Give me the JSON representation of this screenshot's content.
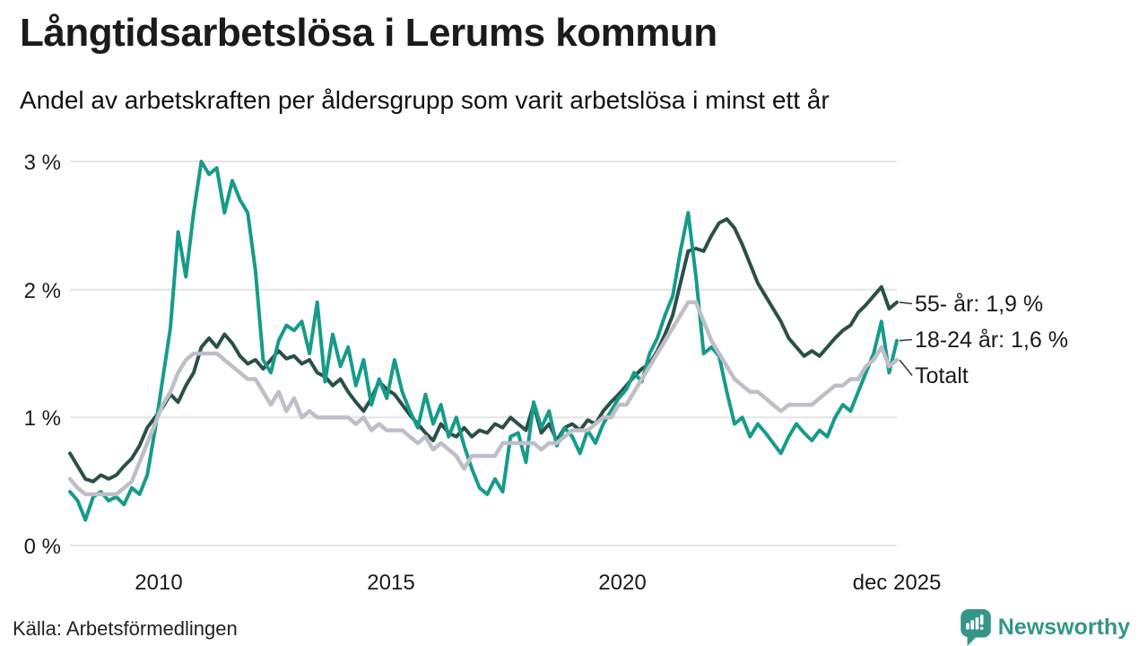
{
  "header": {
    "title": "Långtidsarbetslösa i Lerums kommun",
    "subtitle": "Andel av arbetskraften per åldersgrupp som varit arbetslösa i minst ett år"
  },
  "footer": {
    "source": "Källa: Arbetsförmedlingen",
    "brand_name": "Newsworthy"
  },
  "colors": {
    "series_55": "#2a5048",
    "series_18_24": "#169b8a",
    "series_total": "#bfbec8",
    "grid": "#e4e4e4",
    "connector": "#3a3a3a",
    "brand_teal": "#349688"
  },
  "chart_data": {
    "type": "line",
    "title": "Långtidsarbetslösa i Lerums kommun",
    "subtitle": "Andel av arbetskraften per åldersgrupp som varit arbetslösa i minst ett år",
    "unit": "%",
    "x_start": 2008.083,
    "x_end": 2025.917,
    "points_per_year": 6,
    "ylim": [
      0,
      3.2
    ],
    "grid": true,
    "legend_position": "right-end-labels",
    "y_ticks": [
      {
        "label": "0 %",
        "value": 0
      },
      {
        "label": "1 %",
        "value": 1
      },
      {
        "label": "2 %",
        "value": 2
      },
      {
        "label": "3 %",
        "value": 3
      }
    ],
    "x_ticks": [
      {
        "label": "2010",
        "x": 2010
      },
      {
        "label": "2015",
        "x": 2015
      },
      {
        "label": "2020",
        "x": 2020
      },
      {
        "label": "dec 2025",
        "x": 2025.917
      }
    ],
    "series": [
      {
        "name": "55- år",
        "end_label": "55- år: 1,9 %",
        "last_value_label": "1,9 %",
        "color": "#2a5048",
        "values": [
          0.72,
          0.62,
          0.52,
          0.5,
          0.55,
          0.52,
          0.55,
          0.62,
          0.68,
          0.78,
          0.92,
          1.0,
          1.08,
          1.18,
          1.12,
          1.25,
          1.35,
          1.55,
          1.62,
          1.55,
          1.65,
          1.58,
          1.48,
          1.42,
          1.45,
          1.38,
          1.45,
          1.52,
          1.46,
          1.48,
          1.42,
          1.45,
          1.35,
          1.32,
          1.25,
          1.3,
          1.2,
          1.12,
          1.05,
          1.15,
          1.28,
          1.22,
          1.18,
          1.1,
          1.02,
          0.95,
          0.88,
          0.82,
          0.95,
          0.88,
          0.85,
          0.92,
          0.85,
          0.9,
          0.88,
          0.95,
          0.92,
          1.0,
          0.95,
          0.9,
          1.1,
          0.88,
          0.95,
          0.82,
          0.92,
          0.95,
          0.9,
          0.98,
          0.95,
          1.05,
          1.12,
          1.18,
          1.25,
          1.32,
          1.38,
          1.42,
          1.52,
          1.65,
          1.8,
          2.05,
          2.3,
          2.32,
          2.3,
          2.42,
          2.52,
          2.55,
          2.48,
          2.35,
          2.2,
          2.05,
          1.95,
          1.85,
          1.75,
          1.62,
          1.55,
          1.48,
          1.52,
          1.48,
          1.55,
          1.62,
          1.68,
          1.72,
          1.82,
          1.88,
          1.95,
          2.02,
          1.85,
          1.9
        ]
      },
      {
        "name": "18-24 år",
        "end_label": "18-24 år: 1,6 %",
        "last_value_label": "1,6 %",
        "color": "#169b8a",
        "values": [
          0.42,
          0.35,
          0.2,
          0.38,
          0.42,
          0.35,
          0.38,
          0.32,
          0.45,
          0.4,
          0.55,
          0.9,
          1.3,
          1.7,
          2.45,
          2.1,
          2.6,
          3.0,
          2.9,
          2.95,
          2.6,
          2.85,
          2.7,
          2.6,
          2.15,
          1.45,
          1.35,
          1.6,
          1.72,
          1.68,
          1.75,
          1.5,
          1.9,
          1.28,
          1.65,
          1.4,
          1.55,
          1.25,
          1.45,
          1.1,
          1.3,
          1.15,
          1.45,
          1.2,
          1.05,
          0.92,
          1.18,
          0.95,
          1.1,
          0.85,
          1.0,
          0.78,
          0.6,
          0.45,
          0.4,
          0.52,
          0.42,
          0.85,
          0.88,
          0.65,
          1.12,
          0.92,
          1.05,
          0.78,
          0.92,
          0.85,
          0.72,
          0.9,
          0.8,
          0.95,
          1.05,
          1.15,
          1.22,
          1.35,
          1.28,
          1.5,
          1.62,
          1.8,
          1.95,
          2.3,
          2.6,
          2.1,
          1.5,
          1.55,
          1.48,
          1.2,
          0.95,
          1.0,
          0.85,
          0.95,
          0.88,
          0.8,
          0.72,
          0.85,
          0.95,
          0.88,
          0.82,
          0.9,
          0.85,
          1.0,
          1.1,
          1.05,
          1.2,
          1.35,
          1.5,
          1.75,
          1.35,
          1.6
        ]
      },
      {
        "name": "Totalt",
        "end_label": "Totalt",
        "last_value_label": "",
        "color": "#bfbec8",
        "values": [
          0.52,
          0.45,
          0.4,
          0.4,
          0.4,
          0.4,
          0.4,
          0.45,
          0.5,
          0.65,
          0.8,
          0.95,
          1.1,
          1.2,
          1.35,
          1.45,
          1.5,
          1.5,
          1.5,
          1.5,
          1.45,
          1.4,
          1.35,
          1.3,
          1.3,
          1.2,
          1.1,
          1.2,
          1.05,
          1.15,
          1.0,
          1.05,
          1.0,
          1.0,
          1.0,
          1.0,
          1.0,
          0.95,
          1.0,
          0.9,
          0.95,
          0.9,
          0.9,
          0.9,
          0.85,
          0.8,
          0.85,
          0.75,
          0.8,
          0.75,
          0.7,
          0.6,
          0.7,
          0.7,
          0.7,
          0.7,
          0.8,
          0.8,
          0.8,
          0.8,
          0.8,
          0.75,
          0.8,
          0.8,
          0.85,
          0.9,
          0.9,
          0.9,
          0.95,
          1.0,
          1.0,
          1.1,
          1.1,
          1.2,
          1.3,
          1.4,
          1.5,
          1.6,
          1.7,
          1.8,
          1.9,
          1.9,
          1.75,
          1.6,
          1.5,
          1.4,
          1.3,
          1.25,
          1.2,
          1.2,
          1.15,
          1.1,
          1.05,
          1.1,
          1.1,
          1.1,
          1.1,
          1.15,
          1.2,
          1.25,
          1.25,
          1.3,
          1.3,
          1.4,
          1.45,
          1.55,
          1.4,
          1.45
        ]
      }
    ]
  }
}
